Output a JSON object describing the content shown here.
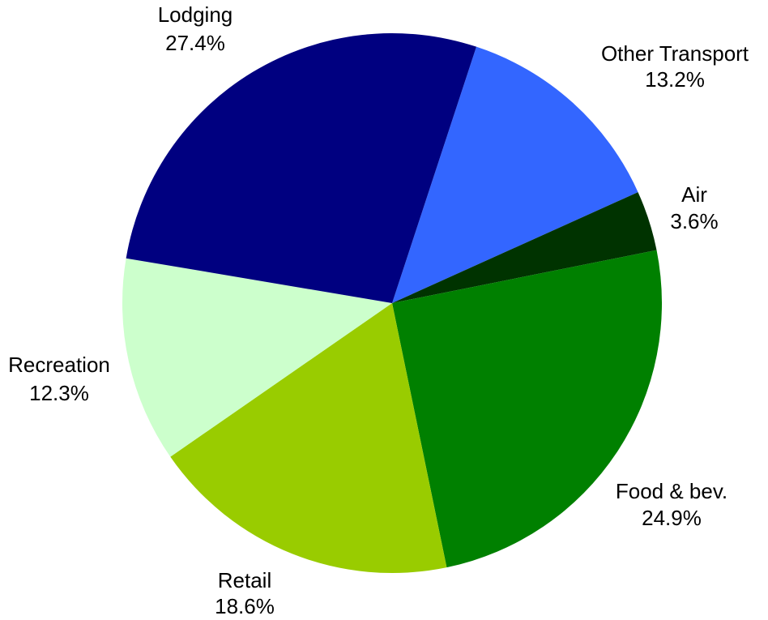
{
  "chart_data": {
    "type": "pie",
    "categories": [
      "Other Transport",
      "Air",
      "Food & bev.",
      "Retail",
      "Recreation",
      "Lodging"
    ],
    "values": [
      13.2,
      3.6,
      24.9,
      18.6,
      12.3,
      27.4
    ],
    "value_labels": [
      "13.2%",
      "3.6%",
      "24.9%",
      "18.6%",
      "12.3%",
      "27.4%"
    ],
    "colors": [
      "#3366ff",
      "#003300",
      "#008000",
      "#99cc00",
      "#ccffcc",
      "#000080"
    ]
  }
}
